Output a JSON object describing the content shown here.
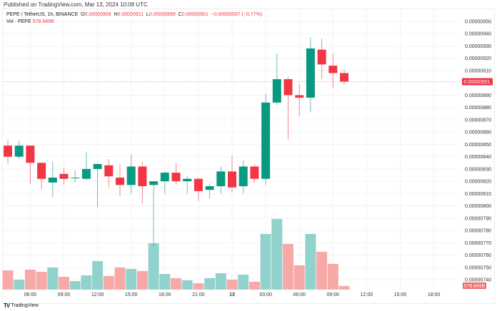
{
  "published": "Published on TradingView.com, Mar 13, 2024 10:08 UTC",
  "legend": {
    "symbol": "PEPE / TetherUS, 1h, BINANCE",
    "o_label": "O",
    "o": "0.00000908",
    "h_label": "H",
    "h": "0.00000911",
    "l_label": "L",
    "l": "0.00000899",
    "c_label": "C",
    "c": "0.00000901",
    "change": "−0.00000007 (−0.77%)",
    "vol_label": "Vol · PEPE",
    "vol": "578.845B"
  },
  "footer": {
    "logo": "TV",
    "brand": "TradingView"
  },
  "colors": {
    "up": "#089981",
    "down": "#f23645",
    "vol_up": "#92d2cc",
    "vol_down": "#f7a9a7"
  },
  "chart_data": {
    "type": "candlestick",
    "price_unit_note_removed": null,
    "x_ticks": [
      "06:00",
      "09:00",
      "12:00",
      "15:00",
      "18:00",
      "21:00",
      "13",
      "03:00",
      "06:00",
      "09:00",
      "12:00",
      "15:00",
      "18:00"
    ],
    "y_ticks": [
      "0.00000950",
      "0.00000940",
      "0.00000930",
      "0.00000920",
      "0.00000910",
      "0.00000890",
      "0.00000880",
      "0.00000870",
      "0.00000860",
      "0.00000850",
      "0.00000840",
      "0.00000830",
      "0.00000820",
      "0.00000810",
      "0.00000800",
      "0.00000790",
      "0.00000780",
      "0.00000770",
      "0.00000760",
      "0.00000750",
      "0.00000740"
    ],
    "ylim": [
      7.4e-06,
      9.5e-06
    ],
    "last_price_label": "0.00000901",
    "last_volume_label": "578.845B",
    "candles_ohlc_e8": [
      [
        849,
        854,
        834,
        840
      ],
      [
        840,
        853,
        838,
        849
      ],
      [
        849,
        849,
        818,
        835
      ],
      [
        835,
        835,
        813,
        822
      ],
      [
        819,
        836,
        807,
        823
      ],
      [
        826,
        831,
        817,
        822
      ],
      [
        823,
        829,
        819,
        823
      ],
      [
        822,
        844,
        821,
        830
      ],
      [
        830,
        835,
        799,
        834
      ],
      [
        833,
        838,
        815,
        824
      ],
      [
        823,
        834,
        808,
        817
      ],
      [
        817,
        842,
        810,
        832
      ],
      [
        832,
        836,
        802,
        816
      ],
      [
        817,
        820,
        767,
        820
      ],
      [
        820,
        828,
        810,
        827
      ],
      [
        827,
        835,
        817,
        820
      ],
      [
        820,
        824,
        810,
        822
      ],
      [
        822,
        823,
        804,
        812
      ],
      [
        813,
        818,
        806,
        816
      ],
      [
        816,
        832,
        810,
        828
      ],
      [
        828,
        841,
        811,
        815
      ],
      [
        816,
        837,
        810,
        832
      ],
      [
        832,
        834,
        819,
        822
      ],
      [
        822,
        891,
        817,
        884
      ],
      [
        884,
        924,
        882,
        903
      ],
      [
        903,
        905,
        854,
        890
      ],
      [
        890,
        899,
        873,
        888
      ],
      [
        888,
        937,
        876,
        928
      ],
      [
        927,
        936,
        903,
        915
      ],
      [
        914,
        924,
        896,
        908
      ],
      [
        908,
        911,
        899,
        901
      ]
    ],
    "volumes_B": [
      3130,
      1620,
      3250,
      2900,
      3600,
      2090,
      1390,
      2320,
      4640,
      2200,
      3600,
      3360,
      3020,
      7540,
      2550,
      1860,
      1510,
      1040,
      1860,
      2670,
      1620,
      2440,
      1280,
      9050,
      11480,
      7420,
      3940,
      9050,
      6150,
      4180,
      579
    ]
  }
}
